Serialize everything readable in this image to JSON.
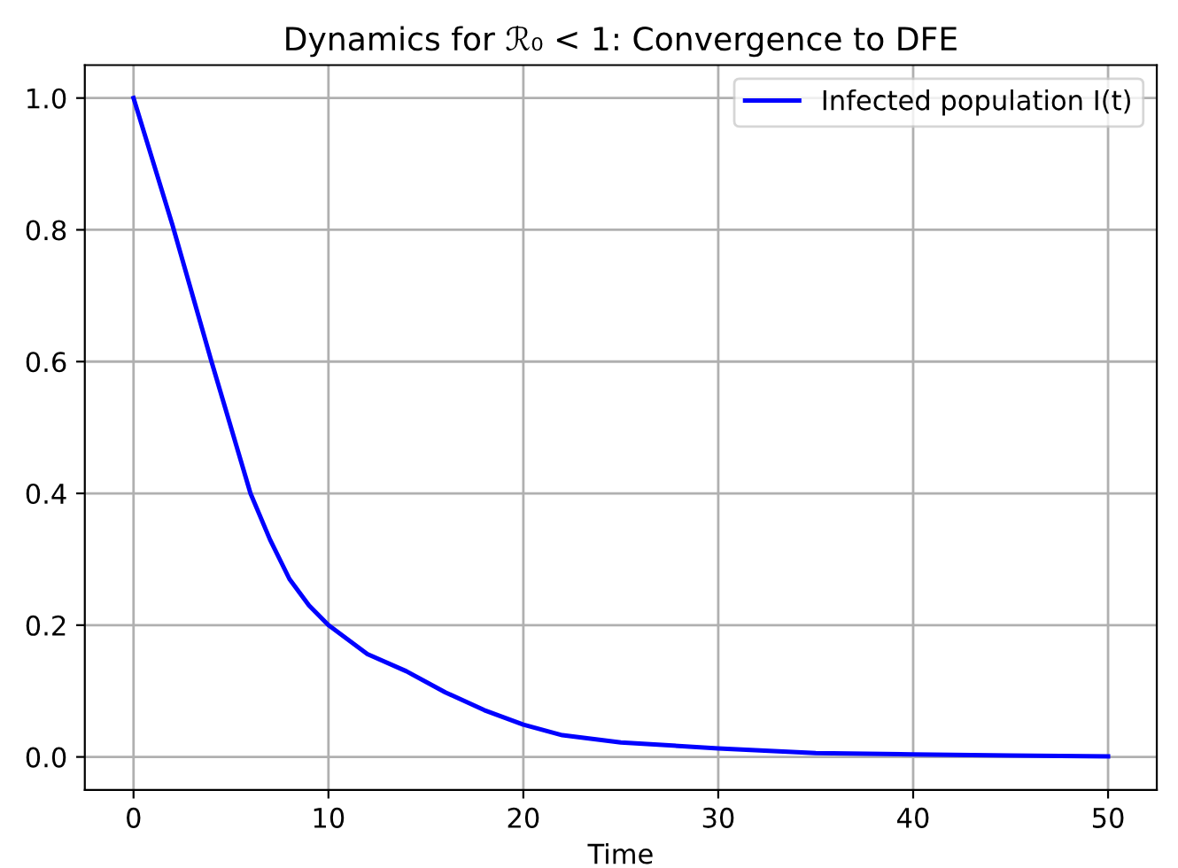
{
  "chart_data": {
    "type": "line",
    "title": "Dynamics for ℛ₀ < 1: Convergence to DFE",
    "xlabel": "Time",
    "series": [
      {
        "name": "Infected population I(t)",
        "color": "#0000ff",
        "x": [
          0,
          2,
          4,
          6,
          7,
          8,
          9,
          10,
          12,
          14,
          16,
          18,
          20,
          22,
          25,
          30,
          35,
          40,
          45,
          50
        ],
        "values": [
          1.0,
          0.807,
          0.6,
          0.4,
          0.33,
          0.27,
          0.23,
          0.2,
          0.156,
          0.13,
          0.098,
          0.071,
          0.049,
          0.033,
          0.022,
          0.013,
          0.006,
          0.004,
          0.002,
          0.001
        ]
      }
    ],
    "xlim": [
      -2.5,
      52.5
    ],
    "ylim": [
      -0.05,
      1.05
    ],
    "xticks": [
      0,
      10,
      20,
      30,
      40,
      50
    ],
    "yticks": [
      {
        "value": 0,
        "label": "0.0"
      },
      0.2,
      0.4,
      0.6,
      0.8,
      {
        "value": 1,
        "label": "1.0"
      }
    ],
    "grid": true,
    "legend": "top right",
    "marker": "none",
    "line_style": "solid"
  }
}
